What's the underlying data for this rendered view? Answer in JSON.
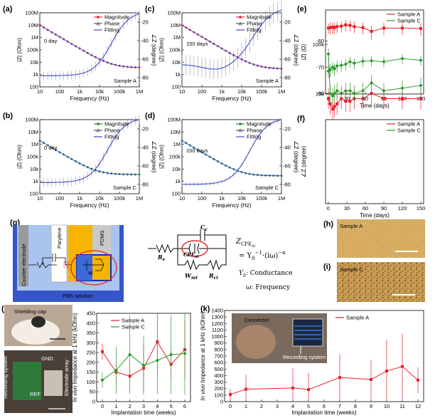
{
  "colors": {
    "magnitude_red": "#e8202a",
    "phase_gray": "#555555",
    "fitting_blue": "#3a4fd8",
    "green": "#1e8a2e",
    "sampleC_green": "#2a9a2a"
  },
  "bode": {
    "legend": [
      "Magnitude",
      "Phase",
      "Fitting"
    ],
    "xlabel": "Frequency (Hz)",
    "ylabel_left": "|Z| (Ohm)",
    "ylabel_right": "∠Z (degree)",
    "x_ticks": [
      "10",
      "100",
      "1k",
      "10k",
      "100k",
      "1M"
    ],
    "y_ticks": [
      "100M",
      "10M",
      "1M",
      "100k",
      "10k",
      "1k",
      "100"
    ],
    "right_ticks": [
      "-80",
      "-60",
      "-40",
      "-20"
    ],
    "panels": [
      {
        "label": "(a)",
        "day": "0 day",
        "sample": "Sample A"
      },
      {
        "label": "(c)",
        "day": "150 days",
        "sample": "Sample A"
      },
      {
        "label": "(b)",
        "day": "0 day",
        "sample": "Sample C"
      },
      {
        "label": "(d)",
        "day": "150 days",
        "sample": "Sample C"
      }
    ]
  },
  "panel_e": {
    "label": "(e)",
    "ylabel": "|Z| (Ω)",
    "xlabel": "Time (days)",
    "y_ticks": [
      "100k",
      "10k"
    ],
    "x_ticks": [
      "0",
      "30",
      "60",
      "90",
      "120",
      "150"
    ],
    "legend": [
      "Sample A",
      "Sample C"
    ]
  },
  "panel_f": {
    "label": "(f)",
    "ylabel": "∠Z (degree)",
    "xlabel": "Time (days)",
    "y_ticks": [
      "-80",
      "-70",
      "-60"
    ],
    "x_ticks": [
      "0",
      "30",
      "60",
      "90",
      "120",
      "150"
    ],
    "legend": [
      "Sample A",
      "Sample C"
    ]
  },
  "panel_g": {
    "label": "(g)",
    "counter_electrode": "Counter electrode",
    "parylene": "Parylene",
    "pdms": "PDMS",
    "pbs": "PBS solution",
    "r_s": "R",
    "r_s_sub": "s",
    "c_c": "C",
    "c_c_sub": "c",
    "cpe": "CPE",
    "cpe_sub": "dl",
    "w_mt": "W",
    "w_mt_sub": "mt",
    "r_ct": "R",
    "r_ct_sub": "ct",
    "eq_lhs": "Z",
    "eq_lhs_sub": "CPE",
    "eq_lhs_subsub": "dl",
    "eq_rhs1": "= Y",
    "eq_rhs1_sub": "0",
    "eq_rhs2": "·(iω)",
    "eq_exp_y0": "−1",
    "eq_exp_alpha": "−α",
    "y0_label": "Y",
    "y0_sub": "0",
    "y0_desc": ": Conductance",
    "omega_desc": "ω: Frequency"
  },
  "panel_h": {
    "label": "(h)",
    "sample": "Sample A"
  },
  "panel_i": {
    "label": "(i)",
    "sample": "Sample C"
  },
  "panel_j": {
    "label": "(j)",
    "shielding_cap": "Shielding cap",
    "recording_system": "Recording system",
    "gnd": "GND",
    "ref": "REF",
    "electrode_array": "Electrode array",
    "ylabel_italic": "In vivo",
    "ylabel_rest": " Impedance at 1 kHz (kOhm)",
    "xlabel": "Implantation time (weeks)",
    "y_ticks": [
      "0",
      "50",
      "100",
      "150",
      "200",
      "250",
      "300",
      "350",
      "400",
      "450"
    ],
    "x_ticks": [
      "0",
      "1",
      "2",
      "3",
      "4",
      "5",
      "6"
    ],
    "legend": [
      "Sample A",
      "Sample C"
    ]
  },
  "panel_k": {
    "label": "(k)",
    "connector": "Connector",
    "recording_system": "Recording system",
    "ylabel_italic": "In vivo",
    "ylabel_rest": " Impedance at 1 kHz (kOhm)",
    "xlabel": "Implantation time (weeks)",
    "y_ticks": [
      "0",
      "100",
      "200",
      "300",
      "400",
      "500",
      "600",
      "700",
      "800",
      "900",
      "1000",
      "1100",
      "1200",
      "1300",
      "1400"
    ],
    "x_ticks": [
      "0",
      "1",
      "2",
      "3",
      "4",
      "5",
      "6",
      "7",
      "8",
      "9",
      "10",
      "11",
      "12"
    ],
    "legend": [
      "Sample A"
    ]
  },
  "chart_data": [
    {
      "type": "line",
      "title": "(e) |Z| over time",
      "xlabel": "Time (days)",
      "ylabel": "|Z| (Ω)",
      "x": [
        0,
        3,
        7,
        10,
        14,
        21,
        28,
        35,
        42,
        56,
        70,
        90,
        120,
        150
      ],
      "series": [
        {
          "name": "Sample A",
          "values": [
            215000,
            220000,
            225000,
            220000,
            230000,
            235000,
            250000,
            245000,
            230000,
            220000,
            185000,
            215000,
            215000,
            210000
          ],
          "err": [
            50000,
            60000,
            60000,
            55000,
            60000,
            60000,
            65000,
            60000,
            60000,
            60000,
            60000,
            60000,
            60000,
            60000
          ]
        },
        {
          "name": "Sample C",
          "values": [
            29000,
            31000,
            35000,
            32000,
            37000,
            38000,
            40000,
            45000,
            42000,
            46000,
            47000,
            45000,
            52000,
            48000
          ],
          "err": [
            8000,
            9000,
            9000,
            9000,
            10000,
            10000,
            10000,
            11000,
            10000,
            11000,
            11000,
            11000,
            12000,
            11000
          ]
        }
      ]
    },
    {
      "type": "line",
      "title": "(f) ∠Z over time",
      "xlabel": "Time (days)",
      "ylabel": "∠Z (degree)",
      "x": [
        0,
        3,
        7,
        10,
        14,
        21,
        28,
        35,
        42,
        56,
        70,
        90,
        120,
        150
      ],
      "series": [
        {
          "name": "Sample A",
          "values": [
            -82,
            -84,
            -86,
            -85,
            -84,
            -82,
            -83,
            -83,
            -82,
            -82,
            -80,
            -82,
            -82,
            -82
          ],
          "err": [
            4,
            4,
            4,
            4,
            4,
            4,
            4,
            4,
            4,
            4,
            4,
            4,
            4,
            4
          ]
        },
        {
          "name": "Sample C",
          "values": [
            -65,
            -80,
            -81,
            -80,
            -79,
            -80,
            -79,
            -79,
            -80,
            -79,
            -76,
            -79,
            -78,
            -77
          ],
          "err": [
            2,
            3,
            3,
            3,
            3,
            3,
            3,
            3,
            3,
            3,
            3,
            3,
            3,
            3
          ]
        }
      ]
    },
    {
      "type": "line",
      "title": "(j) In vivo impedance",
      "xlabel": "Implantation time (weeks)",
      "ylabel": "In vivo Impedance at 1 kHz (kOhm)",
      "x": [
        0,
        1,
        2,
        3,
        4,
        5,
        6
      ],
      "series": [
        {
          "name": "Sample A",
          "values": [
            255,
            150,
            130,
            170,
            305,
            190,
            265
          ],
          "err": [
            40,
            60,
            80,
            120,
            150,
            80,
            150
          ]
        },
        {
          "name": "Sample C",
          "values": [
            110,
            160,
            240,
            185,
            210,
            240,
            245
          ],
          "err": [
            40,
            120,
            200,
            150,
            170,
            200,
            210
          ]
        }
      ]
    },
    {
      "type": "line",
      "title": "(k) In vivo impedance",
      "xlabel": "Implantation time (weeks)",
      "ylabel": "In vivo Impedance at 1 kHz (kOhm)",
      "x": [
        0,
        1,
        4,
        5,
        7,
        9,
        10,
        11,
        12
      ],
      "series": [
        {
          "name": "Sample A",
          "values": [
            110,
            190,
            210,
            185,
            370,
            340,
            470,
            540,
            330
          ],
          "err": [
            90,
            220,
            300,
            260,
            360,
            300,
            480,
            500,
            200
          ]
        }
      ]
    }
  ]
}
